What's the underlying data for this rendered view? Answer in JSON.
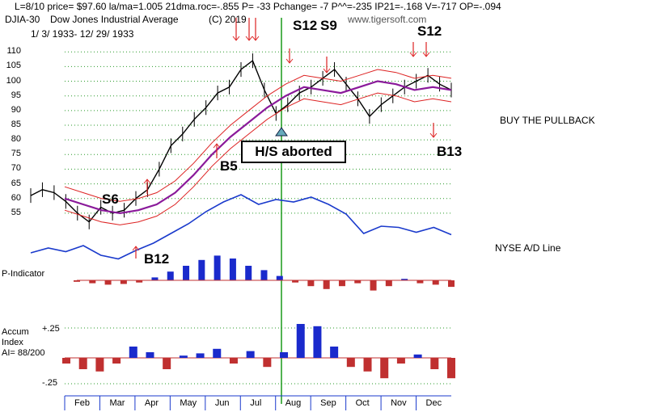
{
  "header": {
    "line1": "L=8/10  price= $97.60  la/ma=1.005 21dma.roc=-.855 P= -33 Pchange= -7 P^^=-235 IP21=-.168 V=-717 OP=-.094",
    "symbol": "DJIA-30",
    "name": "Dow Jones Industrial Average",
    "copyright": "(C) 2019",
    "watermark": "www.tigersoft.com",
    "date_range": "1/ 3/ 1933-  12/ 29/ 1933"
  },
  "annotations": {
    "buy_pullback": "BUY THE PULLBACK",
    "hs_aborted": "H/S aborted",
    "nyse_ad": "NYSE A/D Line",
    "p_indicator": "P-Indicator",
    "accum_index": "Accum",
    "accum_index2": "Index",
    "ai": "AI= 88/200",
    "acc_top": "+.25",
    "acc_bot": "-.25"
  },
  "signals": {
    "s12_top": "S12",
    "s9_top": "S9",
    "s12_right": "S12",
    "s6": "S6",
    "b12": "B12",
    "b5": "B5",
    "b13": "B13"
  },
  "chart_data": {
    "type": "line",
    "title": "Dow Jones Industrial Average 1933",
    "y_ticks": [
      110,
      105,
      100,
      95,
      90,
      85,
      80,
      75,
      70,
      65,
      60,
      55
    ],
    "months": [
      "Feb",
      "Mar",
      "Apr",
      "May",
      "Jun",
      "Jul",
      "Aug",
      "Sep",
      "Oct",
      "Nov",
      "Dec"
    ],
    "price": [
      61,
      63,
      62,
      59,
      55,
      52,
      57,
      55,
      56,
      60,
      63,
      70,
      78,
      82,
      87,
      91,
      96,
      98,
      104,
      107,
      97,
      89,
      92,
      96,
      98,
      101,
      104,
      99,
      94,
      88,
      92,
      95,
      98,
      100,
      102,
      99,
      97
    ],
    "ma21": [
      60,
      58,
      56,
      55,
      56,
      58,
      62,
      68,
      75,
      81,
      86,
      91,
      95,
      98,
      97,
      96,
      98,
      100,
      99,
      97,
      98,
      97
    ],
    "ad_line": [
      -4,
      0,
      -3,
      2,
      -6,
      -9,
      -2,
      4,
      12,
      20,
      30,
      38,
      44,
      36,
      40,
      38,
      42,
      36,
      28,
      12,
      18,
      17,
      13,
      17,
      11
    ],
    "p_indicator": [
      -2,
      -4,
      -6,
      -5,
      -3,
      4,
      12,
      20,
      28,
      34,
      30,
      20,
      14,
      6,
      -3,
      -8,
      -12,
      -8,
      -4,
      -14,
      -8,
      2,
      -4,
      -6,
      -9
    ],
    "accum_index": [
      -0.05,
      -0.1,
      -0.12,
      -0.05,
      0.1,
      0.05,
      -0.1,
      0.02,
      0.04,
      0.08,
      -0.05,
      0.06,
      -0.08,
      0.05,
      0.3,
      0.28,
      0.1,
      -0.08,
      -0.12,
      -0.18,
      -0.05,
      0.03,
      -0.1,
      -0.18
    ],
    "ylim": [
      50,
      112
    ]
  }
}
